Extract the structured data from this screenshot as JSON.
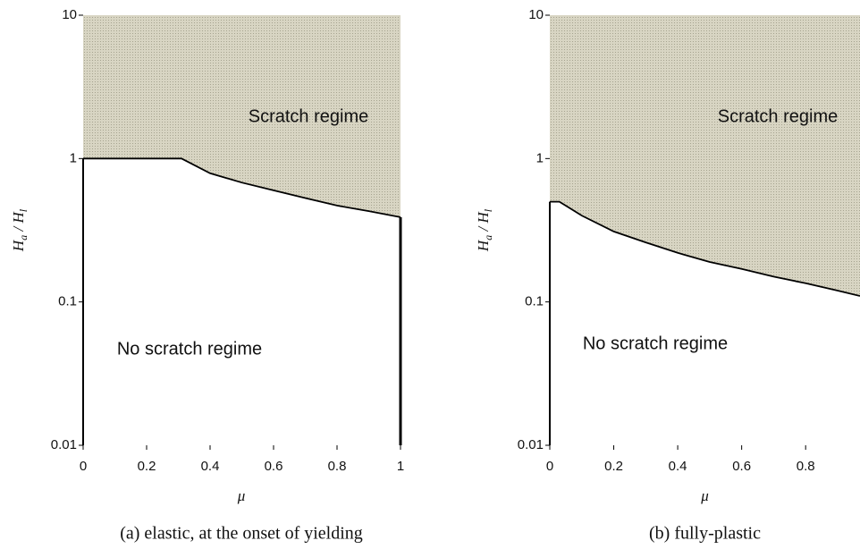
{
  "chart_data": [
    {
      "type": "line",
      "caption": "(a) elastic, at the onset of yielding",
      "x_label": "μ",
      "y_label": [
        "H",
        "a",
        " / H",
        "l"
      ],
      "x": [
        0,
        0.31,
        0.4,
        0.5,
        0.6,
        0.7,
        0.8,
        0.9,
        1.0
      ],
      "series": [
        {
          "color": "#000000",
          "values": [
            1,
            1,
            0.79,
            0.68,
            0.6,
            0.53,
            0.47,
            0.43,
            0.39
          ]
        }
      ],
      "fill_color": "#d8d5c3",
      "log_y": true,
      "xlim": [
        0,
        1
      ],
      "ylim": [
        0.01,
        10
      ],
      "xticks": [
        0,
        0.2,
        0.4,
        0.6,
        0.8,
        1
      ],
      "yticks": [
        0.01,
        0.1,
        1,
        10
      ],
      "annotations": [
        "Scratch regime",
        "No scratch regime"
      ]
    },
    {
      "type": "line",
      "caption": "(b) fully-plastic",
      "x_label": "μ",
      "y_label": [
        "H",
        "a",
        " / H",
        "l"
      ],
      "x": [
        0,
        0.03,
        0.1,
        0.2,
        0.3,
        0.4,
        0.5,
        0.6,
        0.7,
        0.8,
        0.9,
        0.97
      ],
      "series": [
        {
          "color": "#000000",
          "values": [
            0.5,
            0.5,
            0.4,
            0.31,
            0.26,
            0.22,
            0.19,
            0.17,
            0.15,
            0.135,
            0.12,
            0.11
          ]
        }
      ],
      "fill_color": "#d8d5c3",
      "log_y": true,
      "xlim": [
        0,
        0.97
      ],
      "ylim": [
        0.01,
        10
      ],
      "xticks": [
        0,
        0.2,
        0.4,
        0.6,
        0.8
      ],
      "yticks": [
        0.01,
        0.1,
        1,
        10
      ],
      "annotations": [
        "Scratch regime",
        "No scratch regime"
      ]
    }
  ]
}
